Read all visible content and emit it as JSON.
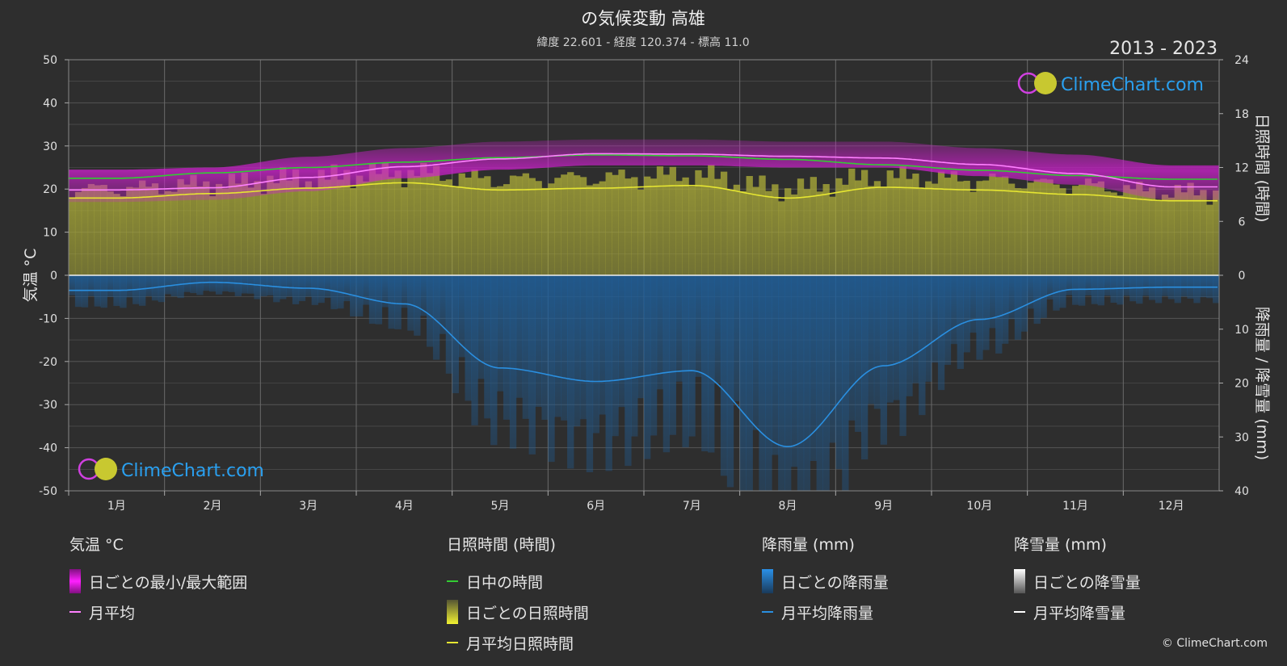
{
  "header": {
    "title": "の気候変動 高雄",
    "subtitle": "緯度 22.601 - 経度 120.374 - 標高 11.0",
    "year_range": "2013 - 2023"
  },
  "watermark": "ClimeChart.com",
  "copyright": "© ClimeChart.com",
  "colors": {
    "background": "#2e2e2e",
    "temp_range": "#d020d0",
    "temp_mean": "#ff80ff",
    "daylight": "#33cc33",
    "sunshine_bar": "#9a9a33",
    "sunshine_mean": "#e6e632",
    "rain_bar": "#1f5f9a",
    "rain_mean": "#2a8fe0",
    "snow_mean": "#ffffff",
    "brand_blue": "#2aa0f0"
  },
  "chart_data": {
    "type": "line",
    "categories": [
      "1月",
      "2月",
      "3月",
      "4月",
      "5月",
      "6月",
      "7月",
      "8月",
      "9月",
      "10月",
      "11月",
      "12月"
    ],
    "axes": {
      "left": {
        "label": "気温 °C",
        "range": [
          -50,
          50
        ],
        "ticks": [
          50,
          40,
          30,
          20,
          10,
          0,
          -10,
          -20,
          -30,
          -40,
          -50
        ]
      },
      "right_top": {
        "label": "日照時間 (時間)",
        "range": [
          0,
          24
        ],
        "ticks": [
          24,
          18,
          12,
          6,
          0
        ]
      },
      "right_bottom": {
        "label": "降雨量 / 降雪量 (mm)",
        "range": [
          0,
          40
        ],
        "ticks": [
          10,
          20,
          30,
          40
        ]
      }
    },
    "series": [
      {
        "name": "月平均",
        "axis": "temperature",
        "values": [
          19.8,
          20.3,
          22.7,
          25.2,
          27.0,
          28.2,
          28.1,
          27.6,
          27.2,
          25.7,
          23.6,
          20.5
        ]
      },
      {
        "name": "日中の時間",
        "axis": "sunshine",
        "values": [
          10.8,
          11.4,
          12.0,
          12.6,
          13.1,
          13.4,
          13.3,
          12.9,
          12.3,
          11.7,
          11.1,
          10.7
        ]
      },
      {
        "name": "月平均日照時間",
        "axis": "sunshine",
        "values": [
          8.6,
          9.1,
          9.7,
          10.3,
          9.5,
          9.7,
          10.0,
          8.6,
          9.8,
          9.5,
          9.0,
          8.3
        ]
      },
      {
        "name": "月平均降雨量",
        "axis": "precipitation",
        "values": [
          2.8,
          1.3,
          2.4,
          5.3,
          17.2,
          19.7,
          17.7,
          31.8,
          16.8,
          8.2,
          2.6,
          2.2
        ]
      },
      {
        "name": "月平均降雪量",
        "axis": "precipitation",
        "values": [
          0,
          0,
          0,
          0,
          0,
          0,
          0,
          0,
          0,
          0,
          0,
          0
        ]
      }
    ],
    "temperature_daily_range_monthly": {
      "min": [
        17.0,
        17.5,
        19.5,
        22.5,
        24.5,
        25.5,
        25.5,
        25.0,
        25.0,
        23.0,
        21.0,
        17.5
      ],
      "max": [
        24.5,
        25.0,
        27.5,
        29.5,
        31.0,
        31.5,
        31.5,
        31.0,
        31.0,
        29.5,
        28.0,
        25.5
      ]
    }
  },
  "legend": {
    "temperature": {
      "title": "気温 °C",
      "items": [
        "日ごとの最小/最大範囲",
        "月平均"
      ]
    },
    "sunshine": {
      "title": "日照時間 (時間)",
      "items": [
        "日中の時間",
        "日ごとの日照時間",
        "月平均日照時間"
      ]
    },
    "rain": {
      "title": "降雨量 (mm)",
      "items": [
        "日ごとの降雨量",
        "月平均降雨量"
      ]
    },
    "snow": {
      "title": "降雪量 (mm)",
      "items": [
        "日ごとの降雪量",
        "月平均降雪量"
      ]
    }
  }
}
